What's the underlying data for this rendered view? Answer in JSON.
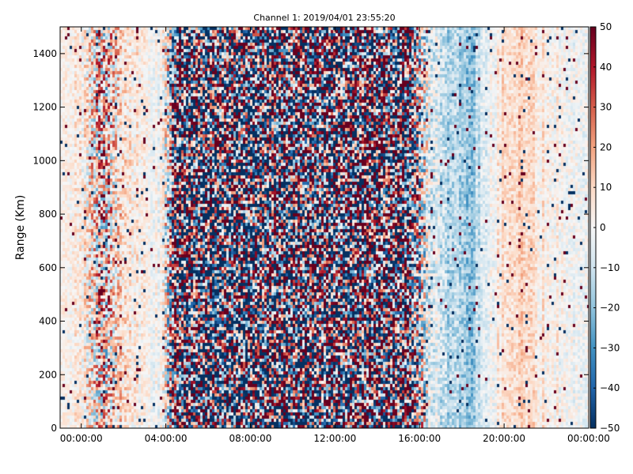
{
  "chart_data": {
    "type": "heatmap",
    "title": "Channel 1: 2019/04/01 23:55:20",
    "xlabel": "",
    "ylabel": "Range (Km)",
    "x_ticks": [
      "00:00:00",
      "04:00:00",
      "08:00:00",
      "12:00:00",
      "16:00:00",
      "20:00:00",
      "00:00:00"
    ],
    "x_tick_hours": [
      0,
      4,
      8,
      12,
      16,
      20,
      24
    ],
    "xlim_hours": [
      -1,
      24
    ],
    "y_ticks": [
      0,
      200,
      400,
      600,
      800,
      1000,
      1200,
      1400
    ],
    "ylim": [
      0,
      1500
    ],
    "colorbar": {
      "colormap": "RdBu_r",
      "range": [
        -50,
        50
      ],
      "ticks": [
        -50,
        -40,
        -30,
        -20,
        -10,
        0,
        10,
        20,
        30,
        40,
        50
      ],
      "colors": [
        "#053061",
        "#2166ac",
        "#4393c3",
        "#92c5de",
        "#d1e5f0",
        "#f7f7f7",
        "#fddbc7",
        "#f4a582",
        "#d6604d",
        "#b2182b",
        "#67001f"
      ]
    },
    "column_profile": {
      "time_hours": [
        -1.0,
        0.0,
        1.0,
        2.0,
        3.0,
        3.8,
        4.5,
        6.0,
        8.0,
        10.0,
        12.0,
        14.0,
        15.5,
        16.5,
        17.5,
        18.3,
        19.0,
        20.0,
        21.0,
        22.0,
        23.0,
        24.0
      ],
      "mean_value": [
        0,
        4,
        10,
        8,
        2,
        0,
        0,
        -10,
        -10,
        -3,
        0,
        3,
        2,
        -5,
        -15,
        -20,
        -8,
        8,
        10,
        4,
        0,
        0
      ],
      "noise_amplitude": [
        5,
        10,
        45,
        14,
        8,
        8,
        80,
        80,
        80,
        80,
        80,
        80,
        80,
        15,
        10,
        10,
        8,
        8,
        8,
        8,
        8,
        8
      ]
    }
  }
}
